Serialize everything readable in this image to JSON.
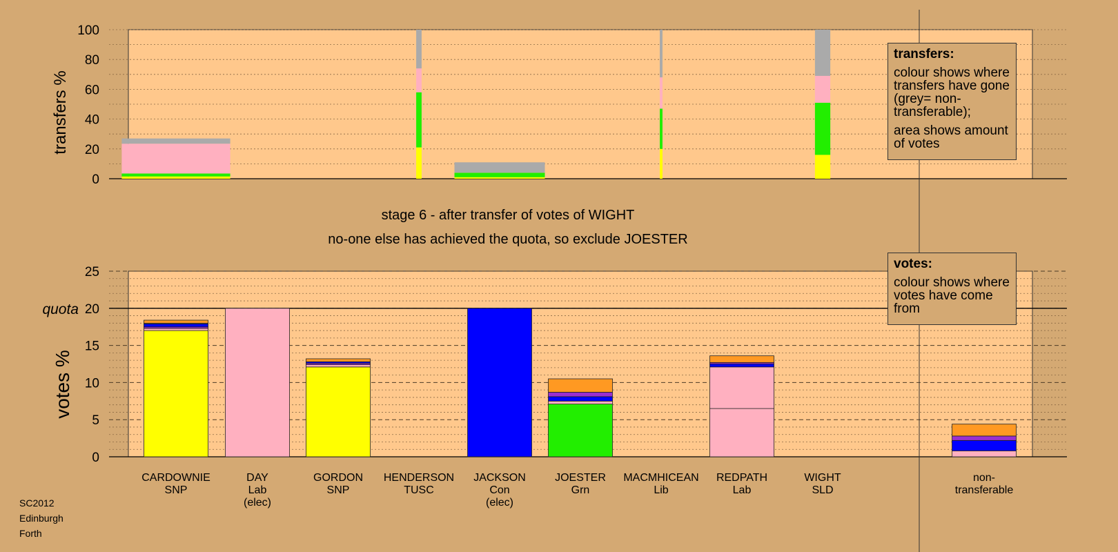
{
  "chart_data": [
    {
      "type": "bar",
      "ylabel": "transfers %",
      "ylim": [
        0,
        100
      ],
      "yticks": [
        "0",
        "20",
        "40",
        "60",
        "80",
        "100"
      ],
      "grid": true,
      "transfers": [
        {
          "target": "CARDOWNIE",
          "width_share": 0.12,
          "segments": [
            {
              "color": "#ffff00",
              "pct": 1.5
            },
            {
              "color": "#22ee00",
              "pct": 2
            },
            {
              "color": "#ffb0c0",
              "pct": 20
            },
            {
              "color": "#aaaaaa",
              "pct": 3.5
            }
          ]
        },
        {
          "target": "HENDERSON",
          "width_share": 0.006,
          "segments": [
            {
              "color": "#ffff00",
              "pct": 21
            },
            {
              "color": "#22ee00",
              "pct": 37
            },
            {
              "color": "#ffb0c0",
              "pct": 16
            },
            {
              "color": "#aaaaaa",
              "pct": 26
            }
          ]
        },
        {
          "target": "JACKSON",
          "width_share": 0.1,
          "segments": [
            {
              "color": "#ffff00",
              "pct": 1
            },
            {
              "color": "#22ee00",
              "pct": 3
            },
            {
              "color": "#aaaaaa",
              "pct": 7
            }
          ]
        },
        {
          "target": "MACMHICEAN",
          "width_share": 0.003,
          "segments": [
            {
              "color": "#ffff00",
              "pct": 20
            },
            {
              "color": "#22ee00",
              "pct": 27
            },
            {
              "color": "#ffb0c0",
              "pct": 21
            },
            {
              "color": "#aaaaaa",
              "pct": 32
            }
          ]
        },
        {
          "target": "WIGHT",
          "width_share": 0.017,
          "segments": [
            {
              "color": "#ffff00",
              "pct": 16
            },
            {
              "color": "#22ee00",
              "pct": 35
            },
            {
              "color": "#ffb0c0",
              "pct": 18
            },
            {
              "color": "#aaaaaa",
              "pct": 31
            }
          ]
        }
      ]
    },
    {
      "type": "bar",
      "ylabel": "votes %",
      "ylim": [
        0,
        25
      ],
      "yticks": [
        "0",
        "5",
        "10",
        "15",
        "20",
        "25"
      ],
      "quota_label": "quota",
      "quota": 20,
      "grid": true,
      "categories": [
        {
          "name": "CARDOWNIE",
          "party": "SNP",
          "extra": "",
          "segments": [
            {
              "color": "#ffff00",
              "value": 17.0
            },
            {
              "color": "#ffb0c0",
              "value": 0.3
            },
            {
              "color": "#9b2fd0",
              "value": 0.2
            },
            {
              "color": "#0000ff",
              "value": 0.4
            },
            {
              "color": "#ffb0c0",
              "value": 0.1
            },
            {
              "color": "#ff9922",
              "value": 0.4
            }
          ]
        },
        {
          "name": "DAY",
          "party": "Lab",
          "extra": "(elec)",
          "segments": [
            {
              "color": "#ffb0c0",
              "value": 20.0
            }
          ]
        },
        {
          "name": "GORDON",
          "party": "SNP",
          "extra": "",
          "segments": [
            {
              "color": "#ffff00",
              "value": 12.1
            },
            {
              "color": "#ffb0c0",
              "value": 0.3
            },
            {
              "color": "#9b2fd0",
              "value": 0.2
            },
            {
              "color": "#0000ff",
              "value": 0.2
            },
            {
              "color": "#ff9922",
              "value": 0.4
            }
          ]
        },
        {
          "name": "HENDERSON",
          "party": "TUSC",
          "extra": "",
          "segments": []
        },
        {
          "name": "JACKSON",
          "party": "Con",
          "extra": "(elec)",
          "segments": [
            {
              "color": "#0000ff",
              "value": 20.0
            }
          ]
        },
        {
          "name": "JOESTER",
          "party": "Grn",
          "extra": "",
          "segments": [
            {
              "color": "#22ee00",
              "value": 7.1
            },
            {
              "color": "#ffb0c0",
              "value": 0.4
            },
            {
              "color": "#0000ff",
              "value": 0.6
            },
            {
              "color": "#9b2fd0",
              "value": 0.6
            },
            {
              "color": "#ff9922",
              "value": 1.8
            }
          ]
        },
        {
          "name": "MACMHICEAN",
          "party": "Lib",
          "extra": "",
          "segments": []
        },
        {
          "name": "REDPATH",
          "party": "Lab",
          "extra": "",
          "segments": [
            {
              "color": "#ffb0c0",
              "value": 6.5
            },
            {
              "color": "#ffb0c0",
              "value": 5.6
            },
            {
              "color": "#0000ff",
              "value": 0.4
            },
            {
              "color": "#9b2fd0",
              "value": 0.2
            },
            {
              "color": "#ff9922",
              "value": 0.9
            }
          ]
        },
        {
          "name": "WIGHT",
          "party": "SLD",
          "extra": "",
          "segments": []
        },
        {
          "name": "non-",
          "party": "transferable",
          "extra": "",
          "segments": [
            {
              "color": "#ffb0c0",
              "value": 0.8
            },
            {
              "color": "#0000ff",
              "value": 1.4
            },
            {
              "color": "#9b2fd0",
              "value": 0.6
            },
            {
              "color": "#ff9922",
              "value": 1.6
            }
          ]
        }
      ]
    }
  ],
  "captions": {
    "stage": "stage 6 - after transfer of votes of WIGHT",
    "action": "no-one else has achieved the quota, so exclude JOESTER"
  },
  "legend_transfers": {
    "title": "transfers:",
    "p1": "colour shows where transfers have gone (grey= non-transferable);",
    "p2": "area shows amount of votes"
  },
  "legend_votes": {
    "title": "votes:",
    "p1": "colour shows where votes have come from"
  },
  "corner": {
    "line1": "SC2012",
    "line2": "Edinburgh",
    "line3": "Forth"
  },
  "colors": {
    "background": "#d4a973",
    "plot_area": "#ffc88c",
    "snp": "#ffff00",
    "green": "#22ee00",
    "labour": "#ffb0c0",
    "conservative": "#0000ff",
    "libdem": "#ff9922",
    "other": "#9b2fd0",
    "non_transferable": "#aaaaaa"
  }
}
